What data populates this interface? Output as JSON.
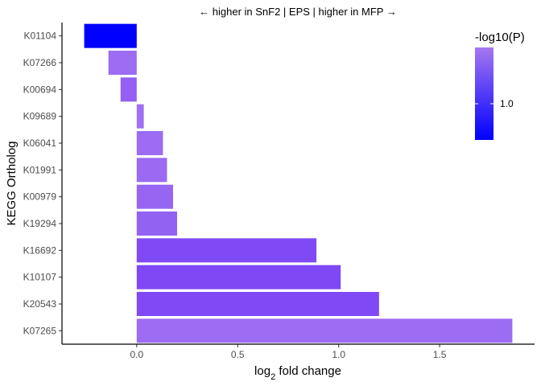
{
  "chart_data": {
    "type": "bar",
    "orientation": "horizontal",
    "title": "← higher in SnF2 | EPS | higher in MFP →",
    "xlabel_main": "log",
    "xlabel_sub": "2",
    "xlabel_rest": " fold change",
    "ylabel": "KEGG Ortholog",
    "xlim": [
      -0.37,
      1.97
    ],
    "x_ticks": [
      0.0,
      0.5,
      1.0,
      1.5
    ],
    "x_tick_labels": [
      "0.0",
      "0.5",
      "1.0",
      "1.5"
    ],
    "categories": [
      "K01104",
      "K07266",
      "K00694",
      "K09689",
      "K06041",
      "K01991",
      "K00979",
      "K19294",
      "K16692",
      "K10107",
      "K20543",
      "K07265"
    ],
    "values": [
      -0.26,
      -0.14,
      -0.08,
      0.035,
      0.13,
      0.15,
      0.18,
      0.2,
      0.89,
      1.01,
      1.2,
      1.86
    ],
    "colors": [
      "#0000ff",
      "#9c6cf2",
      "#9360f3",
      "#a070f0",
      "#9c6cf2",
      "#9a6af2",
      "#9666f2",
      "#9262f3",
      "#7f4af5",
      "#7e48f5",
      "#7f4af5",
      "#9c6cf2"
    ],
    "legend": {
      "title": "-log10(P)",
      "tick_labels": [
        "1.0"
      ],
      "gradient_top": "#a577f0",
      "gradient_bottom": "#0000ff",
      "placement": "top-right"
    }
  }
}
